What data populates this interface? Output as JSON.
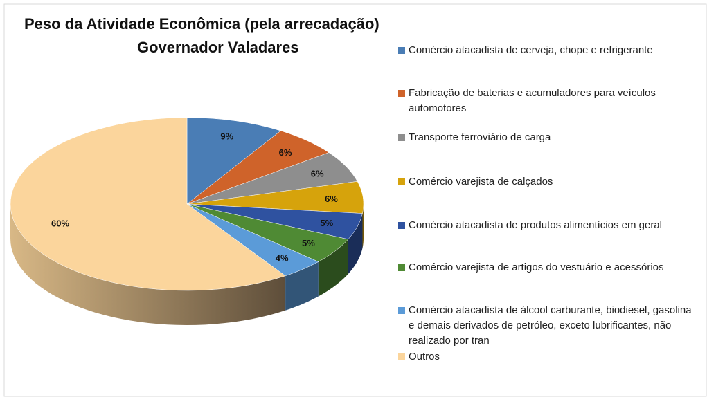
{
  "chart_data": {
    "type": "pie",
    "title": [
      "Peso da Atividade Econômica (pela arrecadação)",
      "Governador Valadares"
    ],
    "categories": [
      "Comércio atacadista de cerveja, chope e refrigerante",
      "Fabricação de baterias e acumuladores para veículos automotores",
      "Transporte ferroviário de carga",
      "Comércio varejista de calçados",
      "Comércio atacadista de produtos alimentícios em geral",
      "Comércio varejista de artigos do vestuário e acessórios",
      "Comércio atacadista de álcool carburante, biodiesel, gasolina e demais derivados de petróleo, exceto lubrificantes, não realizado por tran",
      "Outros"
    ],
    "values": [
      9,
      6,
      6,
      6,
      5,
      5,
      4,
      60
    ],
    "value_labels": [
      "9%",
      "6%",
      "6%",
      "6%",
      "5%",
      "5%",
      "4%",
      "60%"
    ],
    "colors": [
      "#4a7db5",
      "#cf632a",
      "#8e8e8e",
      "#d6a30c",
      "#2f52a0",
      "#4f8a34",
      "#5b9bd8",
      "#fbd59c"
    ],
    "legend": "right"
  }
}
